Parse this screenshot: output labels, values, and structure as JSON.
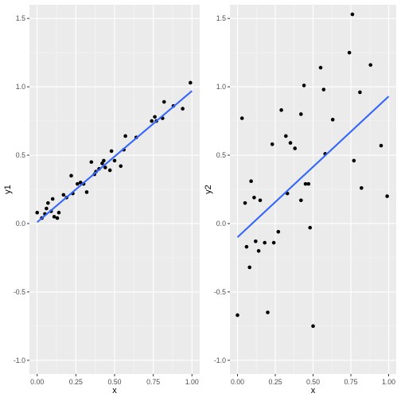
{
  "chart_data": [
    {
      "type": "scatter",
      "xlabel": "x",
      "ylabel": "y1",
      "xlim": [
        -0.05,
        1.05
      ],
      "ylim": [
        -1.1,
        1.6
      ],
      "x_ticks": [
        0.0,
        0.25,
        0.5,
        0.75,
        1.0
      ],
      "x_tick_labels": [
        "0.00",
        "0.25",
        "0.50",
        "0.75",
        "1.00"
      ],
      "y_ticks": [
        -1.0,
        -0.5,
        0.0,
        0.5,
        1.0,
        1.5
      ],
      "y_tick_labels": [
        "-1.0",
        "-0.5",
        "0.0",
        "0.5",
        "1.0",
        "1.5"
      ],
      "grid": true,
      "background": "#ebebeb",
      "point_color": "#000000",
      "line_color": "#3366ff",
      "fit_line": {
        "x": [
          0.0,
          1.0
        ],
        "y": [
          0.01,
          0.97
        ]
      },
      "points": [
        [
          0.0,
          0.08
        ],
        [
          0.03,
          0.04
        ],
        [
          0.05,
          0.07
        ],
        [
          0.06,
          0.11
        ],
        [
          0.07,
          0.15
        ],
        [
          0.09,
          0.09
        ],
        [
          0.1,
          0.18
        ],
        [
          0.11,
          0.05
        ],
        [
          0.13,
          0.04
        ],
        [
          0.14,
          0.08
        ],
        [
          0.17,
          0.21
        ],
        [
          0.19,
          0.19
        ],
        [
          0.22,
          0.35
        ],
        [
          0.23,
          0.22
        ],
        [
          0.26,
          0.29
        ],
        [
          0.28,
          0.3
        ],
        [
          0.3,
          0.29
        ],
        [
          0.32,
          0.23
        ],
        [
          0.35,
          0.45
        ],
        [
          0.37,
          0.36
        ],
        [
          0.38,
          0.38
        ],
        [
          0.4,
          0.4
        ],
        [
          0.42,
          0.44
        ],
        [
          0.43,
          0.46
        ],
        [
          0.44,
          0.41
        ],
        [
          0.47,
          0.39
        ],
        [
          0.48,
          0.53
        ],
        [
          0.5,
          0.46
        ],
        [
          0.54,
          0.42
        ],
        [
          0.56,
          0.54
        ],
        [
          0.57,
          0.64
        ],
        [
          0.64,
          0.63
        ],
        [
          0.74,
          0.75
        ],
        [
          0.76,
          0.78
        ],
        [
          0.77,
          0.75
        ],
        [
          0.81,
          0.77
        ],
        [
          0.82,
          0.89
        ],
        [
          0.88,
          0.86
        ],
        [
          0.94,
          0.84
        ],
        [
          0.99,
          1.03
        ]
      ]
    },
    {
      "type": "scatter",
      "xlabel": "x",
      "ylabel": "y2",
      "xlim": [
        -0.05,
        1.05
      ],
      "ylim": [
        -1.1,
        1.6
      ],
      "x_ticks": [
        0.0,
        0.25,
        0.5,
        0.75,
        1.0
      ],
      "x_tick_labels": [
        "0.00",
        "0.25",
        "0.50",
        "0.75",
        "1.00"
      ],
      "y_ticks": [
        -1.0,
        -0.5,
        0.0,
        0.5,
        1.0,
        1.5
      ],
      "y_tick_labels": [
        "-1.0",
        "-0.5",
        "0.0",
        "0.5",
        "1.0",
        "1.5"
      ],
      "grid": true,
      "background": "#ebebeb",
      "point_color": "#000000",
      "line_color": "#3366ff",
      "fit_line": {
        "x": [
          0.0,
          1.0
        ],
        "y": [
          -0.1,
          0.93
        ]
      },
      "points": [
        [
          0.0,
          -0.67
        ],
        [
          0.03,
          0.77
        ],
        [
          0.05,
          0.15
        ],
        [
          0.06,
          -0.17
        ],
        [
          0.08,
          -0.32
        ],
        [
          0.09,
          0.31
        ],
        [
          0.11,
          0.19
        ],
        [
          0.12,
          -0.13
        ],
        [
          0.14,
          -0.2
        ],
        [
          0.15,
          0.17
        ],
        [
          0.18,
          -0.14
        ],
        [
          0.2,
          -0.65
        ],
        [
          0.23,
          0.58
        ],
        [
          0.24,
          -0.14
        ],
        [
          0.27,
          -0.06
        ],
        [
          0.29,
          0.83
        ],
        [
          0.32,
          0.64
        ],
        [
          0.33,
          0.22
        ],
        [
          0.35,
          0.59
        ],
        [
          0.38,
          0.55
        ],
        [
          0.42,
          0.8
        ],
        [
          0.42,
          0.17
        ],
        [
          0.44,
          1.01
        ],
        [
          0.45,
          0.29
        ],
        [
          0.47,
          0.29
        ],
        [
          0.48,
          -0.03
        ],
        [
          0.5,
          -0.75
        ],
        [
          0.55,
          1.14
        ],
        [
          0.57,
          0.98
        ],
        [
          0.58,
          0.51
        ],
        [
          0.63,
          0.76
        ],
        [
          0.74,
          1.25
        ],
        [
          0.76,
          1.53
        ],
        [
          0.77,
          0.46
        ],
        [
          0.81,
          0.96
        ],
        [
          0.82,
          0.26
        ],
        [
          0.88,
          1.16
        ],
        [
          0.95,
          0.57
        ],
        [
          0.99,
          0.2
        ]
      ]
    }
  ]
}
